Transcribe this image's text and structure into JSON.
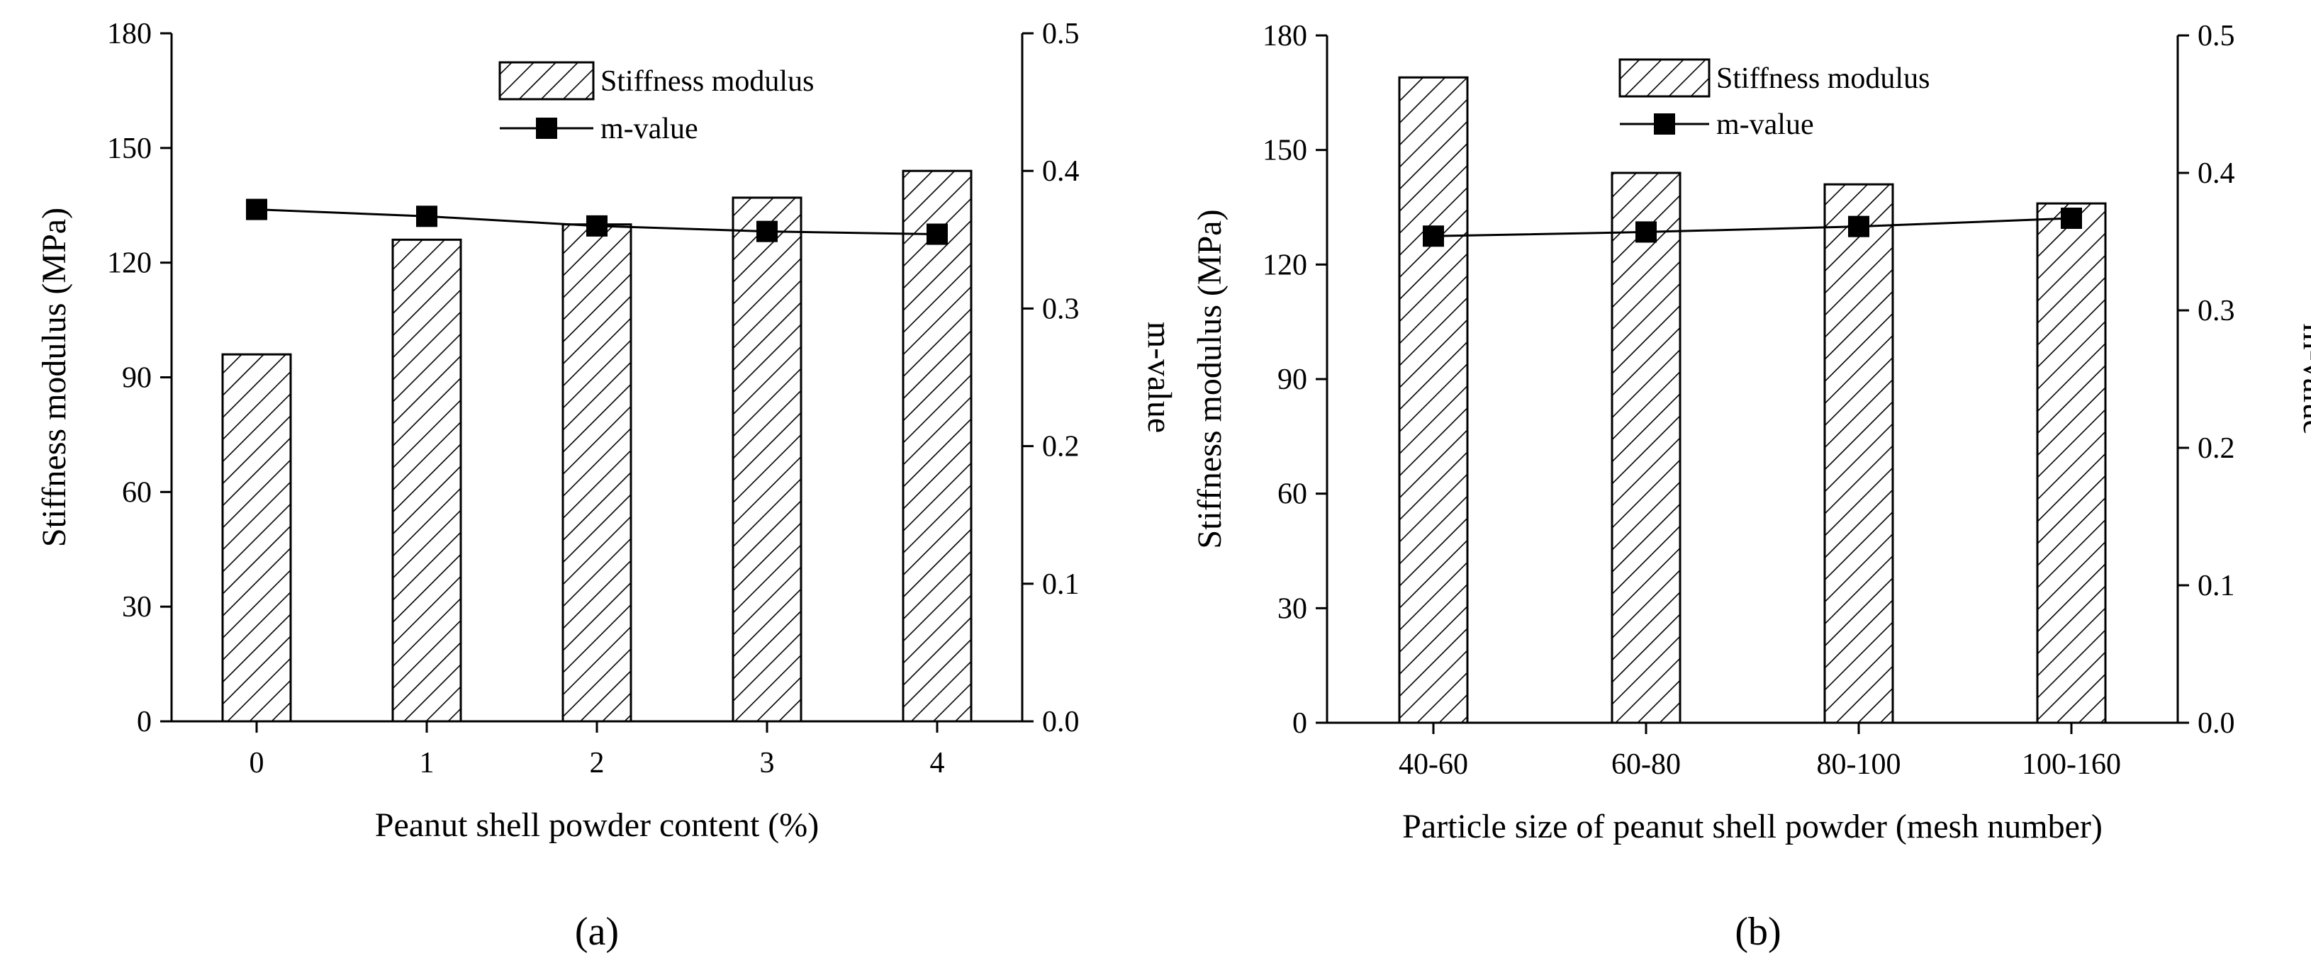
{
  "chart_data": [
    {
      "type": "bar+line",
      "panel_label": "(a)",
      "title": "",
      "xlabel": "Peanut shell powder content (%)",
      "ylabel_left": "Stiffness modulus (MPa)",
      "ylabel_right": "m-value",
      "categories": [
        "0",
        "1",
        "2",
        "3",
        "4"
      ],
      "ylim_left": [
        0,
        180
      ],
      "yticks_left": [
        "0",
        "30",
        "60",
        "90",
        "120",
        "150",
        "180"
      ],
      "ylim_right": [
        0,
        0.5
      ],
      "yticks_right": [
        "0.0",
        "0.1",
        "0.2",
        "0.3",
        "0.4",
        "0.5"
      ],
      "grid": false,
      "legend_position": "top-center",
      "series": [
        {
          "name": "Stiffness modulus",
          "kind": "bar",
          "axis": "left",
          "values": [
            96,
            126,
            130,
            137,
            144
          ]
        },
        {
          "name": "m-value",
          "kind": "line",
          "axis": "right",
          "values": [
            0.372,
            0.367,
            0.36,
            0.356,
            0.354
          ]
        }
      ]
    },
    {
      "type": "bar+line",
      "panel_label": "(b)",
      "title": "",
      "xlabel": "Particle size of peanut shell powder (mesh number)",
      "ylabel_left": "Stiffness modulus (MPa)",
      "ylabel_right": "m-value",
      "categories": [
        "40-60",
        "60-80",
        "80-100",
        "100-160"
      ],
      "ylim_left": [
        0,
        180
      ],
      "yticks_left": [
        "0",
        "30",
        "60",
        "90",
        "120",
        "150",
        "180"
      ],
      "ylim_right": [
        0,
        0.5
      ],
      "yticks_right": [
        "0.0",
        "0.1",
        "0.2",
        "0.3",
        "0.4",
        "0.5"
      ],
      "grid": false,
      "legend_position": "top-center",
      "series": [
        {
          "name": "Stiffness modulus",
          "kind": "bar",
          "axis": "left",
          "values": [
            169,
            144,
            141,
            136
          ]
        },
        {
          "name": "m-value",
          "kind": "line",
          "axis": "right",
          "values": [
            0.354,
            0.357,
            0.361,
            0.367
          ]
        }
      ]
    }
  ]
}
